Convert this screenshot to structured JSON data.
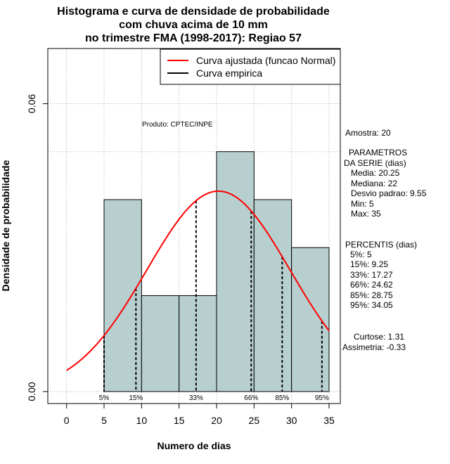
{
  "chart_data": {
    "type": "bar",
    "title": [
      "Histograma e curva de densidade de probabilidade",
      "com chuva acima de 10 mm",
      "no trimestre FMA (1998-2017): Regiao 57"
    ],
    "xlabel": "Numero de dias",
    "ylabel": "Densidade de probabilidade",
    "xlim": [
      -2.5,
      36.5
    ],
    "ylim": [
      -0.0025,
      0.0715
    ],
    "xticks": [
      0,
      5,
      10,
      15,
      20,
      25,
      30,
      35
    ],
    "xtick_labels": [
      "0",
      "5",
      "10",
      "15",
      "20",
      "25",
      "30",
      "35"
    ],
    "yticks": [
      0.0,
      0.06
    ],
    "ytick_labels": [
      "0.00",
      "0.06"
    ],
    "bins": [
      {
        "from": 5,
        "to": 10,
        "density": 0.04
      },
      {
        "from": 10,
        "to": 15,
        "density": 0.02
      },
      {
        "from": 15,
        "to": 20,
        "density": 0.02
      },
      {
        "from": 20,
        "to": 25,
        "density": 0.05
      },
      {
        "from": 25,
        "to": 30,
        "density": 0.04
      },
      {
        "from": 30,
        "to": 35,
        "density": 0.03
      }
    ],
    "hgrid_extra": 0.05,
    "normal_fit": {
      "mean": 20.25,
      "sd": 9.55,
      "x_from": 0,
      "x_to": 35,
      "color": "#ff0000"
    },
    "percentiles": [
      {
        "label": "5%",
        "x": 5
      },
      {
        "label": "15%",
        "x": 9.25
      },
      {
        "label": "33%",
        "x": 17.27
      },
      {
        "label": "66%",
        "x": 24.62
      },
      {
        "label": "85%",
        "x": 28.75
      },
      {
        "label": "95%",
        "x": 34.05
      }
    ],
    "legend": [
      {
        "label": "Curva ajustada (funcao Normal)",
        "color": "#ff0000"
      },
      {
        "label": "Curva empirica",
        "color": "#000000"
      }
    ],
    "legend_position": "top-right",
    "product_label": "Produto: CPTEC/INPE",
    "bar_color": "#b8cfcf"
  },
  "side_panel": {
    "amostra": "Amostra: 20",
    "params_title_1": "PARAMETROS",
    "params_title_2": "DA SERIE (dias)",
    "media": "Media: 20.25",
    "mediana": "Mediana: 22",
    "desvio": "Desvio padrao: 9.55",
    "min": "Min: 5",
    "max": "Max: 35",
    "perc_title": "PERCENTIS (dias)",
    "p5": "5%: 5",
    "p15": "15%: 9.25",
    "p33": "33%: 17.27",
    "p66": "66%: 24.62",
    "p85": "85%: 28.75",
    "p95": "95%: 34.05",
    "curtose": "Curtose: 1.31",
    "assimetria": "Assimetria: -0.33"
  }
}
